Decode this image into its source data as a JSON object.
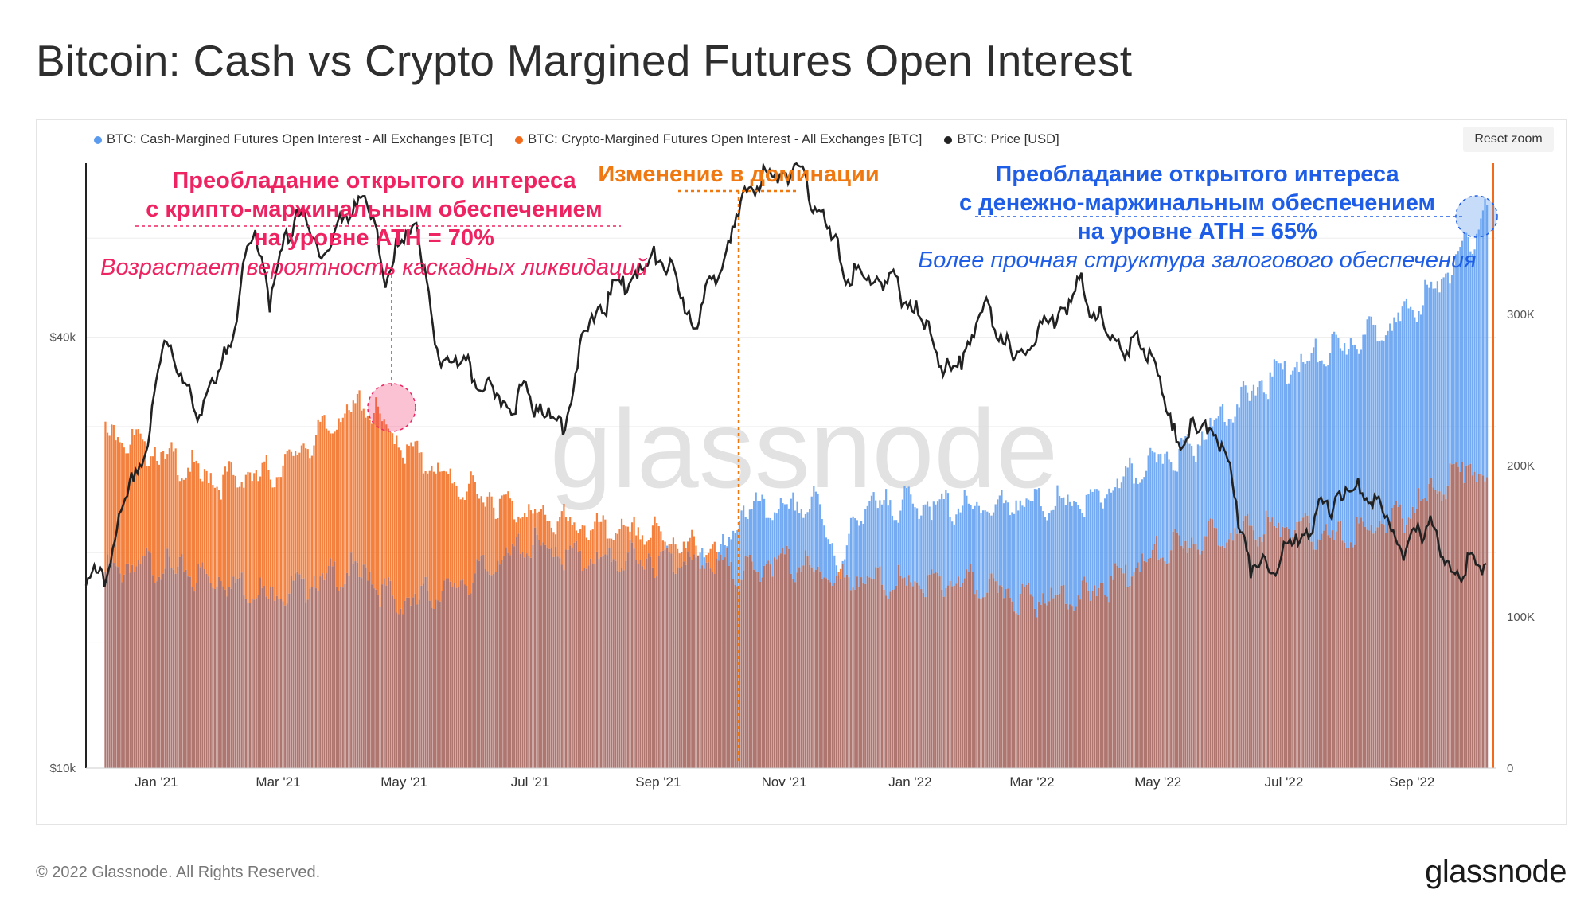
{
  "title": "Bitcoin: Cash vs Crypto Margined Futures Open Interest",
  "reset_zoom": "Reset zoom",
  "footer": "© 2022 Glassnode. All Rights Reserved.",
  "brand": "glassnode",
  "watermark": "glassnode",
  "colors": {
    "cash": "#5b9bef",
    "crypto": "#f26a1b",
    "price": "#222222",
    "overlap": "#a86a64",
    "red_annotation": "#ee2361",
    "orange_annotation": "#f07810",
    "blue_annotation": "#1e5de6"
  },
  "annotations": {
    "left_line1": "Преобладание открытого интереса",
    "left_line2": "с крипто-маржинальным обеспечением",
    "left_line3": "на уровне АТН = 70%",
    "left_italic": "Возрастает вероятность каскадных ликвидаций",
    "middle": "Изменение в доминации",
    "right_line1": "Преобладание открытого интереса",
    "right_line2": "с денежно-маржинальным обеспечением",
    "right_line3": "на уровне АТН = 65%",
    "right_italic": "Более прочная структура залогового обеспечения"
  },
  "chart_data": {
    "type": "bar",
    "title": "Bitcoin: Cash vs Crypto Margined Futures Open Interest",
    "legend_position": "top-left",
    "grid": true,
    "x_ticks": [
      "Jan '21",
      "Mar '21",
      "May '21",
      "Jul '21",
      "Sep '21",
      "Nov '21",
      "Jan '22",
      "Mar '22",
      "May '22",
      "Jul '22",
      "Sep '22"
    ],
    "x_range": [
      "2020-12-01",
      "2022-10-15"
    ],
    "y_left": {
      "label": "",
      "scale": "log",
      "ticks": [
        "$10k",
        "$40k"
      ],
      "range": [
        10000,
        70000
      ]
    },
    "y_right": {
      "label": "",
      "ticks": [
        "0",
        "100K",
        "200K",
        "300K"
      ],
      "range": [
        0,
        400000
      ]
    },
    "series": [
      {
        "name": "BTC: Cash-Margined Futures Open Interest - All Exchanges [BTC]",
        "axis": "right",
        "kind": "bar",
        "points": [
          [
            "2020-12-10",
            130000
          ],
          [
            "2021-01-01",
            135000
          ],
          [
            "2021-02-01",
            125000
          ],
          [
            "2021-03-01",
            115000
          ],
          [
            "2021-04-01",
            128000
          ],
          [
            "2021-04-14",
            130000
          ],
          [
            "2021-05-01",
            108000
          ],
          [
            "2021-06-01",
            122000
          ],
          [
            "2021-07-01",
            148000
          ],
          [
            "2021-08-01",
            138000
          ],
          [
            "2021-09-01",
            138000
          ],
          [
            "2021-10-01",
            138000
          ],
          [
            "2021-10-07",
            145000
          ],
          [
            "2021-10-15",
            172000
          ],
          [
            "2021-11-01",
            170000
          ],
          [
            "2021-11-20",
            175000
          ],
          [
            "2021-12-01",
            130000
          ],
          [
            "2021-12-10",
            172000
          ],
          [
            "2022-01-01",
            175000
          ],
          [
            "2022-02-01",
            172000
          ],
          [
            "2022-03-01",
            175000
          ],
          [
            "2022-04-01",
            175000
          ],
          [
            "2022-05-01",
            202000
          ],
          [
            "2022-05-20",
            212000
          ],
          [
            "2022-06-01",
            230000
          ],
          [
            "2022-07-01",
            262000
          ],
          [
            "2022-08-01",
            278000
          ],
          [
            "2022-09-01",
            300000
          ],
          [
            "2022-09-15",
            318000
          ],
          [
            "2022-10-01",
            345000
          ],
          [
            "2022-10-10",
            372000
          ]
        ]
      },
      {
        "name": "BTC: Crypto-Margined Futures Open Interest - All Exchanges [BTC]",
        "axis": "right",
        "kind": "bar",
        "points": [
          [
            "2020-12-10",
            225000
          ],
          [
            "2021-01-01",
            210000
          ],
          [
            "2021-02-01",
            190000
          ],
          [
            "2021-03-01",
            195000
          ],
          [
            "2021-04-01",
            230000
          ],
          [
            "2021-04-14",
            242000
          ],
          [
            "2021-05-01",
            215000
          ],
          [
            "2021-06-01",
            185000
          ],
          [
            "2021-07-01",
            170000
          ],
          [
            "2021-08-01",
            158000
          ],
          [
            "2021-09-01",
            155000
          ],
          [
            "2021-10-01",
            140000
          ],
          [
            "2021-10-15",
            128000
          ],
          [
            "2021-11-01",
            138000
          ],
          [
            "2021-12-01",
            125000
          ],
          [
            "2022-01-01",
            122000
          ],
          [
            "2022-02-01",
            122000
          ],
          [
            "2022-03-01",
            112000
          ],
          [
            "2022-04-01",
            115000
          ],
          [
            "2022-05-01",
            140000
          ],
          [
            "2022-06-01",
            155000
          ],
          [
            "2022-07-01",
            160000
          ],
          [
            "2022-08-01",
            152000
          ],
          [
            "2022-09-01",
            168000
          ],
          [
            "2022-10-01",
            202000
          ],
          [
            "2022-10-10",
            185000
          ]
        ]
      },
      {
        "name": "BTC: Price [USD]",
        "axis": "left",
        "kind": "line",
        "points": [
          [
            "2020-12-01",
            18500
          ],
          [
            "2020-12-10",
            18300
          ],
          [
            "2020-12-20",
            23500
          ],
          [
            "2021-01-01",
            29000
          ],
          [
            "2021-01-08",
            40500
          ],
          [
            "2021-01-22",
            31500
          ],
          [
            "2021-02-01",
            34000
          ],
          [
            "2021-02-08",
            38500
          ],
          [
            "2021-02-21",
            57000
          ],
          [
            "2021-02-28",
            45000
          ],
          [
            "2021-03-13",
            60500
          ],
          [
            "2021-03-25",
            52000
          ],
          [
            "2021-04-14",
            63500
          ],
          [
            "2021-04-25",
            49000
          ],
          [
            "2021-05-10",
            58000
          ],
          [
            "2021-05-19",
            38000
          ],
          [
            "2021-06-01",
            36500
          ],
          [
            "2021-06-22",
            32000
          ],
          [
            "2021-07-01",
            33500
          ],
          [
            "2021-07-20",
            29800
          ],
          [
            "2021-08-01",
            41500
          ],
          [
            "2021-08-15",
            47000
          ],
          [
            "2021-09-06",
            52000
          ],
          [
            "2021-09-21",
            41500
          ],
          [
            "2021-10-01",
            48000
          ],
          [
            "2021-10-20",
            66000
          ],
          [
            "2021-11-10",
            68500
          ],
          [
            "2021-11-25",
            57000
          ],
          [
            "2021-12-04",
            49000
          ],
          [
            "2021-12-28",
            47500
          ],
          [
            "2022-01-10",
            42000
          ],
          [
            "2022-01-24",
            35000
          ],
          [
            "2022-02-10",
            44000
          ],
          [
            "2022-02-24",
            37000
          ],
          [
            "2022-03-28",
            47000
          ],
          [
            "2022-04-11",
            39500
          ],
          [
            "2022-05-01",
            38500
          ],
          [
            "2022-05-11",
            29000
          ],
          [
            "2022-06-01",
            30000
          ],
          [
            "2022-06-18",
            19000
          ],
          [
            "2022-07-01",
            19500
          ],
          [
            "2022-07-30",
            24000
          ],
          [
            "2022-08-13",
            24400
          ],
          [
            "2022-09-01",
            20000
          ],
          [
            "2022-09-13",
            22500
          ],
          [
            "2022-09-20",
            19000
          ],
          [
            "2022-10-10",
            19300
          ]
        ]
      }
    ]
  }
}
